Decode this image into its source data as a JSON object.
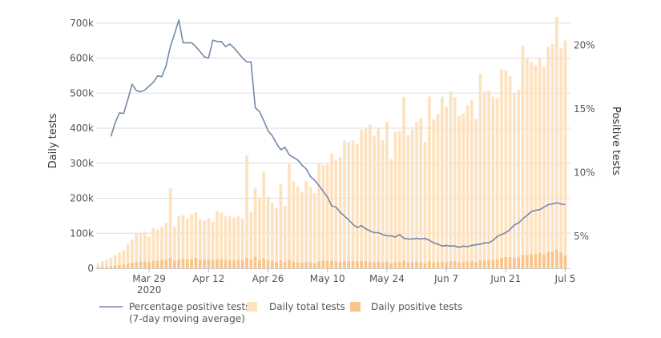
{
  "chart_data": {
    "type": "bar",
    "colors": {
      "total_bar": "#fde2c0",
      "positive_bar": "#f9c58a",
      "line": "#7389ab",
      "grid": "#dddddd"
    },
    "x_ticks": [
      {
        "label": "Mar 29",
        "sublabel": "2020",
        "day": 12
      },
      {
        "label": "Apr 12",
        "day": 26
      },
      {
        "label": "Apr 26",
        "day": 40
      },
      {
        "label": "May 10",
        "day": 54
      },
      {
        "label": "May 24",
        "day": 68
      },
      {
        "label": "Jun 7",
        "day": 82
      },
      {
        "label": "Jun 21",
        "day": 96
      },
      {
        "label": "Jul 5",
        "day": 110
      }
    ],
    "y_left": {
      "title": "Daily tests",
      "ylim": [
        0,
        720000
      ],
      "ticks": [
        {
          "value": 0,
          "label": "0"
        },
        {
          "value": 100000,
          "label": "100k"
        },
        {
          "value": 200000,
          "label": "200k"
        },
        {
          "value": 300000,
          "label": "300k"
        },
        {
          "value": 400000,
          "label": "400k"
        },
        {
          "value": 500000,
          "label": "500k"
        },
        {
          "value": 600000,
          "label": "600k"
        },
        {
          "value": 700000,
          "label": "700k"
        }
      ]
    },
    "y_right": {
      "title": "Positive tests",
      "ylim": [
        2.5,
        22.3
      ],
      "ticks": [
        {
          "value": 5,
          "label": "5%"
        },
        {
          "value": 10,
          "label": "10%"
        },
        {
          "value": 15,
          "label": "15%"
        },
        {
          "value": 20,
          "label": "20%"
        }
      ]
    },
    "series": [
      {
        "name": "Daily total tests",
        "kind": "bar",
        "values": [
          15000,
          20000,
          24000,
          30000,
          38000,
          45000,
          52000,
          68000,
          82000,
          98000,
          102000,
          105000,
          90000,
          115000,
          110000,
          118000,
          130000,
          228000,
          118000,
          148000,
          152000,
          143000,
          155000,
          160000,
          140000,
          137000,
          143000,
          133000,
          162000,
          158000,
          148000,
          150000,
          145000,
          148000,
          142000,
          322000,
          160000,
          228000,
          200000,
          275000,
          205000,
          188000,
          172000,
          240000,
          178000,
          298000,
          248000,
          232000,
          218000,
          250000,
          232000,
          215000,
          300000,
          295000,
          298000,
          328000,
          310000,
          318000,
          365000,
          360000,
          365000,
          355000,
          395000,
          398000,
          410000,
          378000,
          400000,
          365000,
          418000,
          312000,
          390000,
          392000,
          490000,
          380000,
          396000,
          418000,
          428000,
          360000,
          490000,
          425000,
          440000,
          490000,
          460000,
          505000,
          488000,
          435000,
          442000,
          465000,
          480000,
          425000,
          555000,
          505000,
          508000,
          490000,
          485000,
          568000,
          565000,
          548000,
          500000,
          510000,
          635000,
          598000,
          588000,
          580000,
          600000,
          575000,
          632000,
          640000,
          718000,
          628000,
          650000
        ],
        "color_key": "total_bar"
      },
      {
        "name": "Daily positive tests",
        "kind": "bar",
        "values": [
          2500,
          3500,
          4500,
          6000,
          8000,
          9000,
          11000,
          14000,
          16000,
          18000,
          19000,
          20000,
          18000,
          21000,
          22000,
          23000,
          24000,
          30000,
          22000,
          25000,
          27000,
          25000,
          27000,
          30000,
          25000,
          24000,
          25000,
          23000,
          26000,
          25000,
          24000,
          24000,
          23000,
          24000,
          23000,
          30000,
          25000,
          33000,
          24000,
          28000,
          22000,
          20000,
          18000,
          23000,
          18000,
          23000,
          19000,
          17000,
          16000,
          18000,
          17000,
          15000,
          20000,
          22000,
          20000,
          22000,
          19000,
          18000,
          21000,
          20000,
          20000,
          19000,
          20000,
          20000,
          19000,
          18000,
          19000,
          17000,
          19000,
          14000,
          17000,
          17000,
          21000,
          17000,
          17000,
          18000,
          18000,
          15000,
          20000,
          17000,
          18000,
          19000,
          18000,
          20000,
          20000,
          17000,
          18000,
          19000,
          20000,
          18000,
          23000,
          22000,
          24000,
          24000,
          25000,
          30000,
          32000,
          32000,
          30000,
          31000,
          38000,
          38000,
          40000,
          40000,
          43000,
          40000,
          47000,
          48000,
          53000,
          46000,
          38000
        ],
        "color_key": "positive_bar"
      },
      {
        "name": "Percentage positive tests\n(7-day moving average)",
        "kind": "line",
        "axis": "right",
        "points": [
          [
            3,
            12.85
          ],
          [
            4,
            13.9
          ],
          [
            5,
            14.7
          ],
          [
            6,
            14.65
          ],
          [
            7,
            15.75
          ],
          [
            8,
            16.95
          ],
          [
            9,
            16.45
          ],
          [
            10,
            16.35
          ],
          [
            11,
            16.5
          ],
          [
            12,
            16.8
          ],
          [
            13,
            17.1
          ],
          [
            14,
            17.6
          ],
          [
            15,
            17.55
          ],
          [
            16,
            18.4
          ],
          [
            17,
            19.9
          ],
          [
            18,
            20.9
          ],
          [
            19,
            22.0
          ],
          [
            20,
            20.2
          ],
          [
            21,
            20.2
          ],
          [
            22,
            20.2
          ],
          [
            23,
            19.9
          ],
          [
            24,
            19.5
          ],
          [
            25,
            19.1
          ],
          [
            26,
            19.0
          ],
          [
            27,
            20.4
          ],
          [
            28,
            20.3
          ],
          [
            29,
            20.3
          ],
          [
            30,
            19.9
          ],
          [
            31,
            20.1
          ],
          [
            32,
            19.8
          ],
          [
            33,
            19.4
          ],
          [
            34,
            19.0
          ],
          [
            35,
            18.7
          ],
          [
            36,
            18.7
          ],
          [
            37,
            15.1
          ],
          [
            38,
            14.8
          ],
          [
            39,
            14.1
          ],
          [
            40,
            13.3
          ],
          [
            41,
            12.9
          ],
          [
            42,
            12.3
          ],
          [
            43,
            11.8
          ],
          [
            44,
            12.0
          ],
          [
            45,
            11.4
          ],
          [
            46,
            11.2
          ],
          [
            47,
            11.0
          ],
          [
            48,
            10.6
          ],
          [
            49,
            10.3
          ],
          [
            50,
            9.7
          ],
          [
            51,
            9.4
          ],
          [
            52,
            9.0
          ],
          [
            53,
            8.55
          ],
          [
            54,
            8.1
          ],
          [
            55,
            7.4
          ],
          [
            56,
            7.3
          ],
          [
            57,
            6.9
          ],
          [
            58,
            6.6
          ],
          [
            59,
            6.3
          ],
          [
            60,
            5.95
          ],
          [
            61,
            5.7
          ],
          [
            62,
            5.85
          ],
          [
            63,
            5.6
          ],
          [
            64,
            5.45
          ],
          [
            65,
            5.3
          ],
          [
            66,
            5.3
          ],
          [
            67,
            5.15
          ],
          [
            68,
            5.05
          ],
          [
            69,
            5.05
          ],
          [
            70,
            4.95
          ],
          [
            71,
            5.15
          ],
          [
            72,
            4.85
          ],
          [
            73,
            4.8
          ],
          [
            74,
            4.8
          ],
          [
            75,
            4.85
          ],
          [
            76,
            4.8
          ],
          [
            77,
            4.85
          ],
          [
            78,
            4.7
          ],
          [
            79,
            4.5
          ],
          [
            80,
            4.4
          ],
          [
            81,
            4.25
          ],
          [
            82,
            4.3
          ],
          [
            83,
            4.25
          ],
          [
            84,
            4.25
          ],
          [
            85,
            4.15
          ],
          [
            86,
            4.25
          ],
          [
            87,
            4.2
          ],
          [
            88,
            4.3
          ],
          [
            89,
            4.35
          ],
          [
            90,
            4.4
          ],
          [
            91,
            4.5
          ],
          [
            92,
            4.5
          ],
          [
            93,
            4.7
          ],
          [
            94,
            5.0
          ],
          [
            95,
            5.15
          ],
          [
            96,
            5.3
          ],
          [
            97,
            5.55
          ],
          [
            98,
            5.9
          ],
          [
            99,
            6.05
          ],
          [
            100,
            6.4
          ],
          [
            101,
            6.65
          ],
          [
            102,
            6.95
          ],
          [
            103,
            7.05
          ],
          [
            104,
            7.1
          ],
          [
            105,
            7.3
          ],
          [
            106,
            7.5
          ],
          [
            107,
            7.55
          ],
          [
            108,
            7.65
          ],
          [
            109,
            7.55
          ],
          [
            110,
            7.5
          ]
        ],
        "color_key": "line"
      }
    ],
    "legend": {
      "placement": "bottom",
      "items": [
        {
          "label_lines": [
            "Percentage positive tests",
            "(7-day moving average)"
          ],
          "symbol": "line",
          "color_key": "line"
        },
        {
          "label_lines": [
            "Daily total tests"
          ],
          "symbol": "square",
          "color_key": "total_bar"
        },
        {
          "label_lines": [
            "Daily positive tests"
          ],
          "symbol": "square",
          "color_key": "positive_bar"
        }
      ]
    },
    "grid": {
      "horizontal": true,
      "vertical": false
    }
  }
}
